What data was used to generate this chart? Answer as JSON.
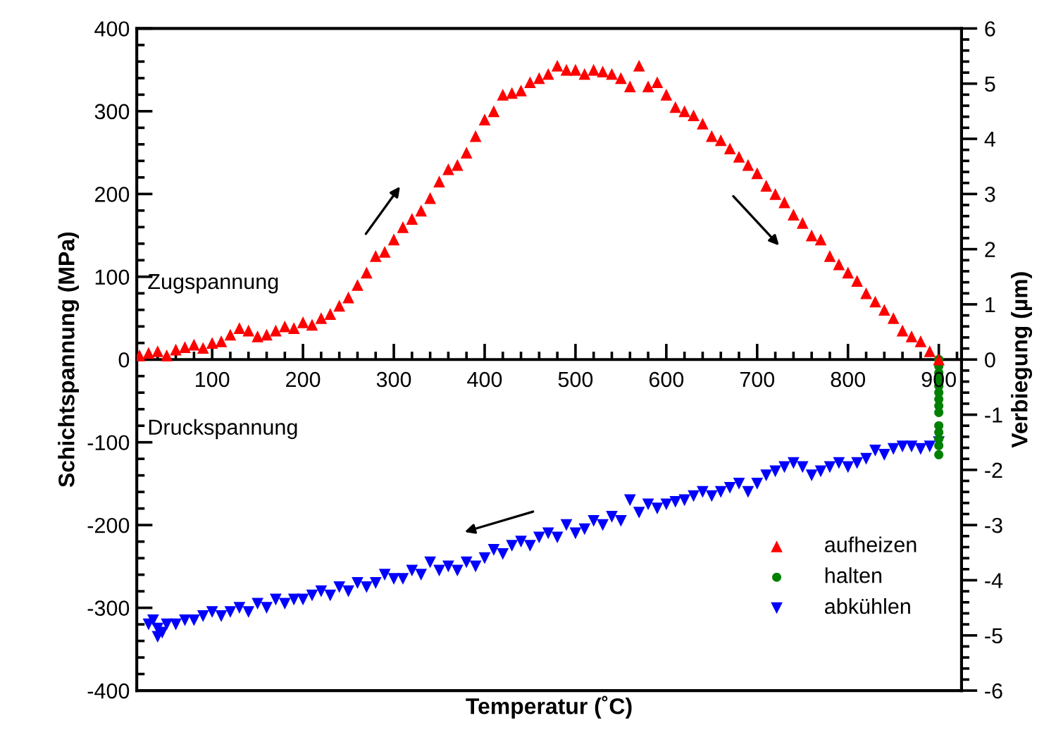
{
  "chart_data": {
    "type": "scatter",
    "xlabel": "Temperatur (˚C)",
    "ylabel": "Schichtspannung (MPa)",
    "y2label": "Verbiegung (µm)",
    "xlim": [
      17,
      925
    ],
    "xticks": [
      100,
      200,
      300,
      400,
      500,
      600,
      700,
      800,
      900
    ],
    "ylim": [
      -400,
      400
    ],
    "yticks": [
      -400,
      -300,
      -200,
      -100,
      0,
      100,
      200,
      300,
      400
    ],
    "y2lim": [
      -6,
      6
    ],
    "y2ticks": [
      -6,
      -5,
      -4,
      -3,
      -2,
      -1,
      0,
      1,
      2,
      3,
      4,
      5,
      6
    ],
    "grid": false,
    "legend": "bottom right",
    "annotations": [
      "Zugspannung",
      "Druckspannung"
    ],
    "series": [
      {
        "name": "aufheizen",
        "color": "#ff0000",
        "marker": "triangle",
        "x": [
          20,
          30,
          40,
          50,
          60,
          70,
          80,
          90,
          100,
          110,
          120,
          130,
          140,
          150,
          160,
          170,
          180,
          190,
          200,
          210,
          220,
          230,
          240,
          250,
          260,
          270,
          280,
          290,
          300,
          310,
          320,
          330,
          340,
          350,
          360,
          370,
          380,
          390,
          400,
          410,
          420,
          430,
          440,
          450,
          460,
          470,
          480,
          490,
          500,
          510,
          520,
          530,
          540,
          550,
          560,
          570,
          580,
          590,
          600,
          610,
          620,
          630,
          640,
          650,
          660,
          670,
          680,
          690,
          700,
          710,
          720,
          730,
          740,
          750,
          760,
          770,
          780,
          790,
          800,
          810,
          820,
          830,
          840,
          850,
          860,
          870,
          880,
          890,
          900
        ],
        "values": [
          5,
          8,
          10,
          5,
          12,
          15,
          18,
          14,
          20,
          22,
          30,
          38,
          35,
          28,
          30,
          35,
          40,
          38,
          45,
          42,
          50,
          55,
          65,
          75,
          90,
          105,
          125,
          130,
          145,
          160,
          170,
          180,
          195,
          215,
          230,
          235,
          250,
          270,
          290,
          300,
          320,
          322,
          325,
          335,
          340,
          345,
          355,
          350,
          350,
          345,
          350,
          348,
          345,
          340,
          330,
          355,
          330,
          335,
          320,
          305,
          300,
          295,
          285,
          270,
          265,
          255,
          245,
          235,
          225,
          210,
          200,
          190,
          175,
          165,
          150,
          145,
          125,
          115,
          105,
          95,
          80,
          70,
          60,
          50,
          35,
          28,
          22,
          10,
          0
        ]
      },
      {
        "name": "halten",
        "color": "#008000",
        "marker": "circle",
        "x": [
          900,
          900,
          900,
          900,
          900,
          900,
          900,
          900,
          900,
          900,
          900,
          900,
          900,
          900
        ],
        "values": [
          0,
          -8,
          -16,
          -24,
          -32,
          -40,
          -48,
          -56,
          -64,
          -80,
          -88,
          -96,
          -104,
          -115
        ]
      },
      {
        "name": "abkühlen",
        "color": "#0000ff",
        "marker": "triangle_down",
        "x": [
          900,
          890,
          880,
          870,
          860,
          850,
          840,
          830,
          820,
          810,
          800,
          790,
          780,
          770,
          760,
          750,
          740,
          730,
          720,
          710,
          700,
          690,
          680,
          670,
          660,
          650,
          640,
          630,
          620,
          610,
          600,
          590,
          580,
          570,
          560,
          550,
          540,
          530,
          520,
          510,
          500,
          490,
          480,
          470,
          460,
          450,
          440,
          430,
          420,
          410,
          400,
          390,
          380,
          370,
          360,
          350,
          340,
          330,
          320,
          310,
          300,
          290,
          280,
          270,
          260,
          250,
          240,
          230,
          220,
          210,
          200,
          190,
          180,
          170,
          160,
          150,
          140,
          130,
          120,
          110,
          100,
          90,
          80,
          70,
          60,
          50,
          45,
          40,
          35,
          30,
          40
        ],
        "values": [
          -100,
          -105,
          -108,
          -105,
          -105,
          -108,
          -115,
          -110,
          -120,
          -125,
          -130,
          -125,
          -130,
          -135,
          -140,
          -130,
          -125,
          -130,
          -135,
          -140,
          -150,
          -160,
          -150,
          -155,
          -160,
          -165,
          -160,
          -165,
          -170,
          -172,
          -175,
          -180,
          -175,
          -185,
          -170,
          -195,
          -190,
          -200,
          -195,
          -205,
          -210,
          -200,
          -215,
          -210,
          -215,
          -225,
          -220,
          -225,
          -235,
          -230,
          -240,
          -250,
          -245,
          -255,
          -250,
          -255,
          -245,
          -260,
          -255,
          -265,
          -265,
          -260,
          -270,
          -275,
          -270,
          -280,
          -275,
          -285,
          -280,
          -285,
          -290,
          -290,
          -295,
          -290,
          -300,
          -295,
          -305,
          -300,
          -305,
          -310,
          -305,
          -310,
          -315,
          -315,
          -320,
          -320,
          -330,
          -325,
          -315,
          -320,
          -335
        ]
      }
    ]
  }
}
